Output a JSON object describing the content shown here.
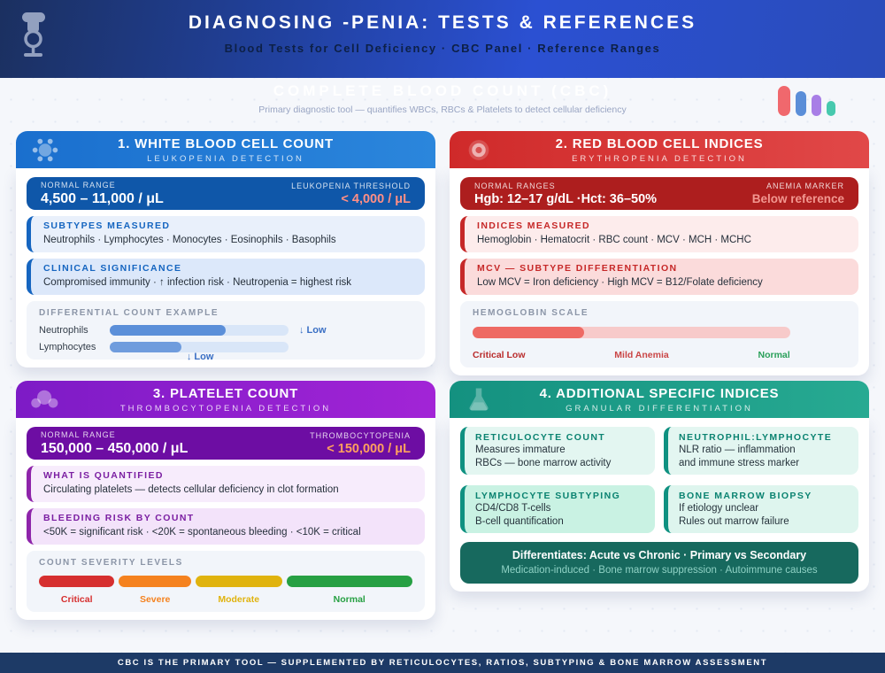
{
  "header": {
    "title": "DIAGNOSING -PENIA: TESTS & REFERENCES",
    "subtitle": "Blood Tests for Cell Deficiency · CBC Panel · Reference Ranges",
    "icon": "microscope-icon"
  },
  "intro": {
    "title": "COMPLETE BLOOD COUNT (CBC)",
    "subtitle": "Primary diagnostic tool — quantifies WBCs, RBCs & Platelets to detect cellular deficiency",
    "chart_icon": {
      "name": "mini-bar-chart-icon",
      "bar_colors": [
        "#f0686d",
        "#5a8ed8",
        "#a87ee6",
        "#47c9ae"
      ]
    }
  },
  "cards": [
    {
      "icon": "white-blood-cell-icon",
      "accent": "#1565c0",
      "title": "1. WHITE BLOOD CELL COUNT",
      "subtitle": "LEUKOPENIA DETECTION",
      "range": {
        "left_label": "NORMAL RANGE",
        "left_value": "4,500 – 11,000 / μL",
        "right_label": "LEUKOPENIA THRESHOLD",
        "right_value": "< 4,000 / μL"
      },
      "boxes": [
        {
          "heading": "SUBTYPES MEASURED",
          "text": "Neutrophils · Lymphocytes · Monocytes · Eosinophils · Basophils"
        },
        {
          "heading": "CLINICAL SIGNIFICANCE",
          "text": "Compromised immunity · ↑ infection risk · Neutropenia = highest risk"
        }
      ],
      "example": {
        "heading": "DIFFERENTIAL COUNT EXAMPLE",
        "rows": [
          {
            "label": "Neutrophils",
            "fill_percent": 65,
            "note": "↓ Low"
          },
          {
            "label": "Lymphocytes",
            "fill_percent": 40,
            "note": "↓ Low"
          }
        ]
      }
    },
    {
      "icon": "red-blood-cell-icon",
      "accent": "#c62828",
      "title": "2. RED BLOOD CELL INDICES",
      "subtitle": "ERYTHROPENIA DETECTION",
      "range": {
        "left_label": "NORMAL RANGES",
        "left_value": "Hgb: 12–17 g/dL ·Hct: 36–50%",
        "right_label": "ANEMIA MARKER",
        "right_value": "Below reference"
      },
      "boxes": [
        {
          "heading": "INDICES MEASURED",
          "text": "Hemoglobin · Hematocrit · RBC count · MCV · MCH · MCHC"
        },
        {
          "heading": "MCV — SUBTYPE DIFFERENTIATION",
          "text": "Low MCV = Iron deficiency · High MCV = B12/Folate deficiency"
        }
      ],
      "example": {
        "heading": "HEMOGLOBIN SCALE",
        "fill_percent": 35,
        "labels": [
          {
            "text": "Critical Low",
            "color": "#b92c2c"
          },
          {
            "text": "Mild Anemia",
            "color": "#ca4646"
          },
          {
            "text": "Normal",
            "color": "#2aa05a"
          }
        ]
      }
    },
    {
      "icon": "platelet-icon",
      "accent": "#8e24aa",
      "title": "3. PLATELET COUNT",
      "subtitle": "THROMBOCYTOPENIA DETECTION",
      "range": {
        "left_label": "NORMAL RANGE",
        "left_value": "150,000 – 450,000 / μL",
        "right_label": "THROMBOCYTOPENIA",
        "right_value": "< 150,000 / μL"
      },
      "boxes": [
        {
          "heading": "WHAT IS QUANTIFIED",
          "text": "Circulating platelets — detects cellular deficiency in clot formation"
        },
        {
          "heading": "BLEEDING RISK BY COUNT",
          "text": "<50K = significant risk · <20K = spontaneous bleeding · <10K = critical"
        }
      ],
      "example": {
        "heading": "COUNT SEVERITY LEVELS",
        "segments": [
          {
            "label": "Critical",
            "color": "#d62f2f",
            "percent": 21
          },
          {
            "label": "Severe",
            "color": "#f5821f",
            "percent": 20
          },
          {
            "label": "Moderate",
            "color": "#e0b30e",
            "percent": 24
          },
          {
            "label": "Normal",
            "color": "#27a043",
            "percent": 35
          }
        ]
      }
    },
    {
      "icon": "flask-icon",
      "accent": "#0f9181",
      "title": "4. ADDITIONAL SPECIFIC INDICES",
      "subtitle": "GRANULAR DIFFERENTIATION",
      "boxes": [
        {
          "heading": "RETICULOCYTE COUNT",
          "lines": [
            "Measures immature",
            "RBCs — bone marrow activity"
          ]
        },
        {
          "heading": "NEUTROPHIL:LYMPHOCYTE",
          "lines": [
            "NLR ratio — inflammation",
            "and immune stress marker"
          ]
        },
        {
          "heading": "LYMPHOCYTE SUBTYPING",
          "lines": [
            "CD4/CD8 T-cells",
            "B-cell quantification"
          ]
        },
        {
          "heading": "BONE MARROW BIOPSY",
          "lines": [
            "If etiology unclear",
            "Rules out marrow failure"
          ]
        }
      ],
      "summary": {
        "line1": "Differentiates: Acute vs Chronic · Primary vs Secondary",
        "line2": "Medication-induced · Bone marrow suppression · Autoimmune causes"
      }
    }
  ],
  "footer": {
    "text": "CBC IS THE PRIMARY TOOL — SUPPLEMENTED BY RETICULOCYTES, RATIOS, SUBTYPING & BONE MARROW ASSESSMENT"
  },
  "palette": {
    "header_navy": "#1b3060",
    "header_blue": "#2b50d2",
    "footer_navy": "#1d3a66",
    "card_blue": "#1a6fce",
    "card_red": "#cf2a2a",
    "card_purple": "#7d1bc6",
    "card_teal": "#149180",
    "threshold_coral": "#ff8f85",
    "threshold_orange": "#ffa05e"
  }
}
